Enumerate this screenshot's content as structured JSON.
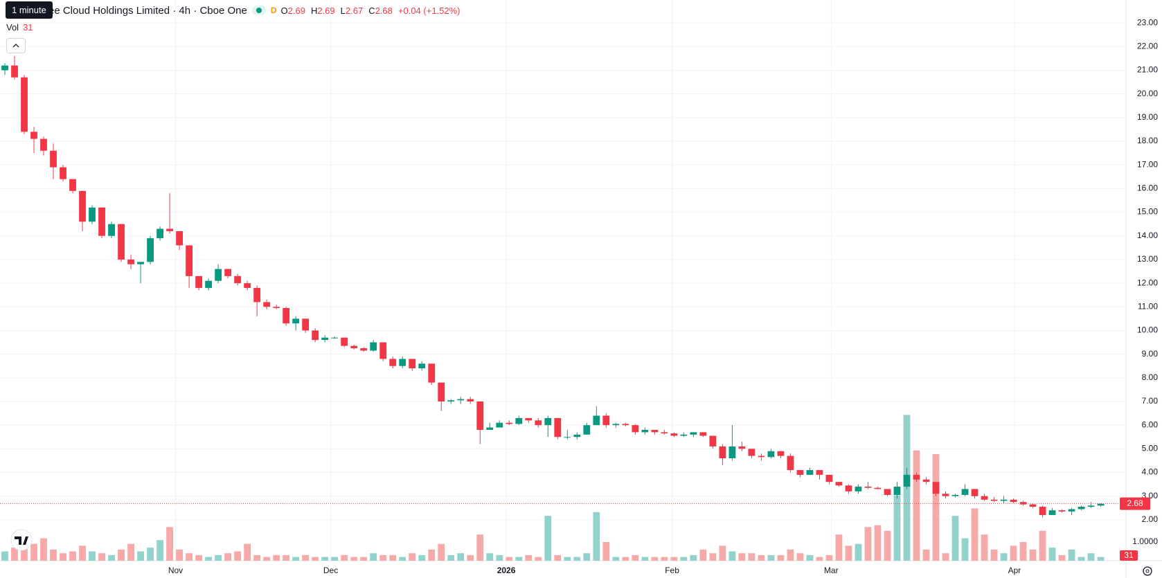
{
  "chart_data": {
    "type": "candlestick",
    "title": "ee Cloud Holdings Limited · 4h · Cboe One",
    "interval_tooltip": "1 minute",
    "interval_badge": "D",
    "ohlc_labels": [
      "O",
      "H",
      "L",
      "C"
    ],
    "ohlc_values": [
      2.69,
      2.69,
      2.67,
      2.68
    ],
    "change": "+0.04 (+1.52%)",
    "volume_label": "Vol",
    "volume_value": 31,
    "up_color": "#089981",
    "down_color": "#f23645",
    "up_volume_color": "#92d2cc",
    "down_volume_color": "#f7a9a7",
    "grid": true,
    "ylim": [
      0.27,
      23.97
    ],
    "yticks": [
      {
        "value": 2,
        "label": "2.00"
      },
      {
        "value": 3,
        "label": "3.00"
      },
      {
        "value": 4,
        "label": "4.00"
      },
      {
        "value": 5,
        "label": "5.00"
      },
      {
        "value": 6,
        "label": "6.00"
      },
      {
        "value": 7,
        "label": "7.00"
      },
      {
        "value": 8,
        "label": "8.00"
      },
      {
        "value": 9,
        "label": "9.00"
      },
      {
        "value": 10,
        "label": "10.00"
      },
      {
        "value": 11,
        "label": "11.00"
      },
      {
        "value": 12,
        "label": "12.00"
      },
      {
        "value": 13,
        "label": "13.00"
      },
      {
        "value": 14,
        "label": "14.00"
      },
      {
        "value": 15,
        "label": "15.00"
      },
      {
        "value": 16,
        "label": "16.00"
      },
      {
        "value": 17,
        "label": "17.00"
      },
      {
        "value": 18,
        "label": "18.00"
      },
      {
        "value": 19,
        "label": "19.00"
      },
      {
        "value": 20,
        "label": "20.00"
      },
      {
        "value": 21,
        "label": "21.00"
      },
      {
        "value": 22,
        "label": "22.00"
      },
      {
        "value": 23,
        "label": "23.00"
      }
    ],
    "y2lim": [
      0,
      30
    ],
    "y2ticks": [
      {
        "value": 1,
        "label": "1.0000"
      }
    ],
    "xlim": [
      -0.5,
      115.6
    ],
    "xticks": [
      {
        "value": 17.6,
        "label": "Nov"
      },
      {
        "value": 33.6,
        "label": "Dec"
      },
      {
        "value": 51.7,
        "label": "2026"
      },
      {
        "value": 68.8,
        "label": "Feb"
      },
      {
        "value": 85.2,
        "label": "Mar"
      },
      {
        "value": 104.1,
        "label": "Apr"
      }
    ],
    "candles": [
      [
        21.0,
        21.3,
        20.8,
        21.2
      ],
      [
        21.2,
        21.6,
        20.6,
        20.7
      ],
      [
        20.7,
        20.8,
        18.3,
        18.4
      ],
      [
        18.4,
        18.6,
        17.5,
        18.1
      ],
      [
        18.1,
        18.2,
        17.4,
        17.6
      ],
      [
        17.6,
        17.9,
        16.4,
        16.9
      ],
      [
        16.9,
        17.0,
        16.3,
        16.4
      ],
      [
        16.4,
        16.4,
        15.8,
        15.9
      ],
      [
        15.9,
        15.9,
        14.2,
        14.6
      ],
      [
        14.6,
        15.3,
        14.5,
        15.2
      ],
      [
        15.2,
        15.2,
        13.9,
        14.0
      ],
      [
        14.0,
        14.6,
        13.9,
        14.5
      ],
      [
        14.5,
        14.5,
        12.9,
        13.0
      ],
      [
        13.0,
        13.2,
        12.6,
        12.8
      ],
      [
        12.8,
        12.9,
        12.0,
        12.9
      ],
      [
        12.9,
        14.0,
        12.8,
        13.9
      ],
      [
        13.9,
        14.4,
        13.8,
        14.3
      ],
      [
        14.3,
        15.8,
        14.1,
        14.2
      ],
      [
        14.2,
        14.2,
        13.4,
        13.6
      ],
      [
        13.6,
        13.6,
        11.8,
        12.3
      ],
      [
        12.3,
        12.3,
        11.7,
        11.8
      ],
      [
        11.8,
        12.2,
        11.7,
        12.1
      ],
      [
        12.1,
        12.8,
        12.0,
        12.6
      ],
      [
        12.6,
        12.6,
        12.2,
        12.3
      ],
      [
        12.3,
        12.4,
        11.9,
        12.0
      ],
      [
        12.0,
        12.1,
        11.7,
        11.8
      ],
      [
        11.8,
        11.9,
        10.6,
        11.2
      ],
      [
        11.2,
        11.3,
        10.9,
        11.0
      ],
      [
        11.0,
        11.1,
        10.9,
        10.95
      ],
      [
        10.95,
        11.0,
        10.2,
        10.3
      ],
      [
        10.3,
        10.6,
        10.0,
        10.5
      ],
      [
        10.5,
        10.5,
        9.9,
        10.0
      ],
      [
        10.0,
        10.1,
        9.5,
        9.6
      ],
      [
        9.6,
        9.8,
        9.5,
        9.7
      ],
      [
        9.7,
        9.75,
        9.65,
        9.7
      ],
      [
        9.7,
        9.7,
        9.3,
        9.35
      ],
      [
        9.35,
        9.4,
        9.2,
        9.25
      ],
      [
        9.25,
        9.3,
        9.1,
        9.15
      ],
      [
        9.15,
        9.6,
        9.1,
        9.5
      ],
      [
        9.5,
        9.5,
        8.7,
        8.8
      ],
      [
        8.8,
        8.9,
        8.4,
        8.5
      ],
      [
        8.5,
        8.9,
        8.4,
        8.8
      ],
      [
        8.8,
        8.8,
        8.3,
        8.4
      ],
      [
        8.4,
        8.7,
        8.3,
        8.6
      ],
      [
        8.6,
        8.6,
        7.7,
        7.8
      ],
      [
        7.8,
        7.8,
        6.6,
        7.0
      ],
      [
        7.0,
        7.1,
        6.9,
        7.05
      ],
      [
        7.05,
        7.2,
        6.9,
        7.1
      ],
      [
        7.1,
        7.2,
        6.9,
        7.0
      ],
      [
        7.0,
        7.0,
        5.2,
        5.8
      ],
      [
        5.8,
        6.1,
        5.8,
        5.9
      ],
      [
        5.9,
        6.2,
        5.9,
        6.1
      ],
      [
        6.1,
        6.2,
        6.0,
        6.05
      ],
      [
        6.05,
        6.4,
        6.0,
        6.3
      ],
      [
        6.3,
        6.3,
        6.1,
        6.2
      ],
      [
        6.2,
        6.3,
        5.9,
        6.0
      ],
      [
        6.0,
        6.4,
        5.5,
        6.3
      ],
      [
        6.3,
        6.3,
        5.4,
        5.5
      ],
      [
        5.5,
        5.8,
        5.4,
        5.5
      ],
      [
        5.5,
        5.7,
        5.4,
        5.6
      ],
      [
        5.6,
        6.1,
        5.6,
        6.0
      ],
      [
        6.0,
        6.8,
        6.0,
        6.4
      ],
      [
        6.4,
        6.5,
        5.9,
        6.0
      ],
      [
        6.0,
        6.1,
        5.9,
        6.05
      ],
      [
        6.05,
        6.1,
        5.95,
        6.0
      ],
      [
        6.0,
        6.05,
        5.6,
        5.7
      ],
      [
        5.7,
        5.9,
        5.6,
        5.8
      ],
      [
        5.8,
        5.8,
        5.6,
        5.7
      ],
      [
        5.7,
        5.8,
        5.6,
        5.65
      ],
      [
        5.65,
        5.7,
        5.5,
        5.55
      ],
      [
        5.55,
        5.7,
        5.5,
        5.6
      ],
      [
        5.6,
        5.7,
        5.5,
        5.7
      ],
      [
        5.7,
        5.7,
        5.5,
        5.55
      ],
      [
        5.55,
        5.55,
        5.0,
        5.1
      ],
      [
        5.1,
        5.2,
        4.3,
        4.6
      ],
      [
        4.6,
        6.0,
        4.5,
        5.1
      ],
      [
        5.1,
        5.3,
        4.9,
        5.0
      ],
      [
        5.0,
        5.0,
        4.6,
        4.7
      ],
      [
        4.7,
        4.8,
        4.5,
        4.65
      ],
      [
        4.65,
        5.0,
        4.6,
        4.9
      ],
      [
        4.9,
        4.9,
        4.6,
        4.7
      ],
      [
        4.7,
        4.8,
        4.0,
        4.1
      ],
      [
        4.1,
        4.1,
        3.8,
        3.9
      ],
      [
        3.9,
        4.2,
        3.9,
        4.1
      ],
      [
        4.1,
        4.1,
        3.7,
        3.9
      ],
      [
        3.9,
        3.9,
        3.5,
        3.6
      ],
      [
        3.6,
        3.6,
        3.4,
        3.45
      ],
      [
        3.45,
        3.5,
        3.1,
        3.2
      ],
      [
        3.2,
        3.5,
        3.1,
        3.4
      ],
      [
        3.4,
        3.6,
        3.3,
        3.35
      ],
      [
        3.35,
        3.4,
        3.3,
        3.3
      ],
      [
        3.3,
        3.3,
        3.0,
        3.05
      ],
      [
        3.05,
        3.6,
        2.9,
        3.4
      ],
      [
        3.4,
        4.2,
        3.3,
        3.9
      ],
      [
        3.9,
        4.0,
        3.6,
        3.7
      ],
      [
        3.7,
        3.8,
        3.5,
        3.6
      ],
      [
        3.6,
        3.6,
        3.0,
        3.1
      ],
      [
        3.1,
        3.2,
        2.9,
        3.0
      ],
      [
        3.0,
        3.1,
        2.95,
        3.05
      ],
      [
        3.05,
        3.5,
        3.0,
        3.3
      ],
      [
        3.3,
        3.3,
        2.9,
        3.0
      ],
      [
        3.0,
        3.1,
        2.8,
        2.85
      ],
      [
        2.85,
        2.95,
        2.75,
        2.8
      ],
      [
        2.8,
        3.0,
        2.7,
        2.85
      ],
      [
        2.85,
        2.9,
        2.7,
        2.75
      ],
      [
        2.75,
        2.8,
        2.6,
        2.65
      ],
      [
        2.65,
        2.7,
        2.5,
        2.55
      ],
      [
        2.55,
        2.6,
        2.1,
        2.2
      ],
      [
        2.2,
        2.5,
        2.2,
        2.4
      ],
      [
        2.4,
        2.45,
        2.3,
        2.35
      ],
      [
        2.35,
        2.5,
        2.2,
        2.45
      ],
      [
        2.45,
        2.6,
        2.4,
        2.55
      ],
      [
        2.55,
        2.75,
        2.5,
        2.6
      ],
      [
        2.6,
        2.7,
        2.55,
        2.68
      ]
    ],
    "volumes": [
      0.5,
      0.7,
      0.8,
      0.9,
      1.2,
      0.6,
      0.4,
      0.5,
      0.8,
      0.5,
      0.4,
      0.3,
      0.6,
      0.9,
      0.5,
      0.7,
      1.1,
      1.8,
      0.6,
      0.4,
      0.3,
      0.2,
      0.3,
      0.4,
      0.5,
      0.9,
      0.3,
      0.2,
      0.3,
      0.3,
      0.2,
      0.3,
      0.2,
      0.2,
      0.2,
      0.3,
      0.2,
      0.2,
      0.4,
      0.3,
      0.3,
      0.2,
      0.4,
      0.3,
      0.6,
      0.9,
      0.3,
      0.4,
      0.3,
      1.4,
      0.4,
      0.3,
      0.2,
      0.2,
      0.3,
      0.2,
      2.4,
      0.3,
      0.2,
      0.2,
      0.4,
      2.6,
      1.0,
      0.2,
      0.2,
      0.3,
      0.2,
      0.2,
      0.2,
      0.2,
      0.2,
      0.3,
      0.6,
      0.4,
      0.8,
      0.5,
      0.4,
      0.4,
      0.3,
      0.3,
      0.3,
      0.6,
      0.4,
      0.3,
      0.2,
      0.3,
      1.4,
      0.8,
      0.9,
      1.8,
      1.9,
      1.6,
      3.5,
      7.8,
      5.9,
      0.6,
      5.7,
      0.4,
      2.4,
      1.2,
      2.8,
      1.4,
      0.6,
      0.4,
      0.8,
      1.0,
      0.6,
      1.6,
      0.7,
      0.3,
      0.6,
      0.2,
      0.4,
      0.2
    ]
  }
}
